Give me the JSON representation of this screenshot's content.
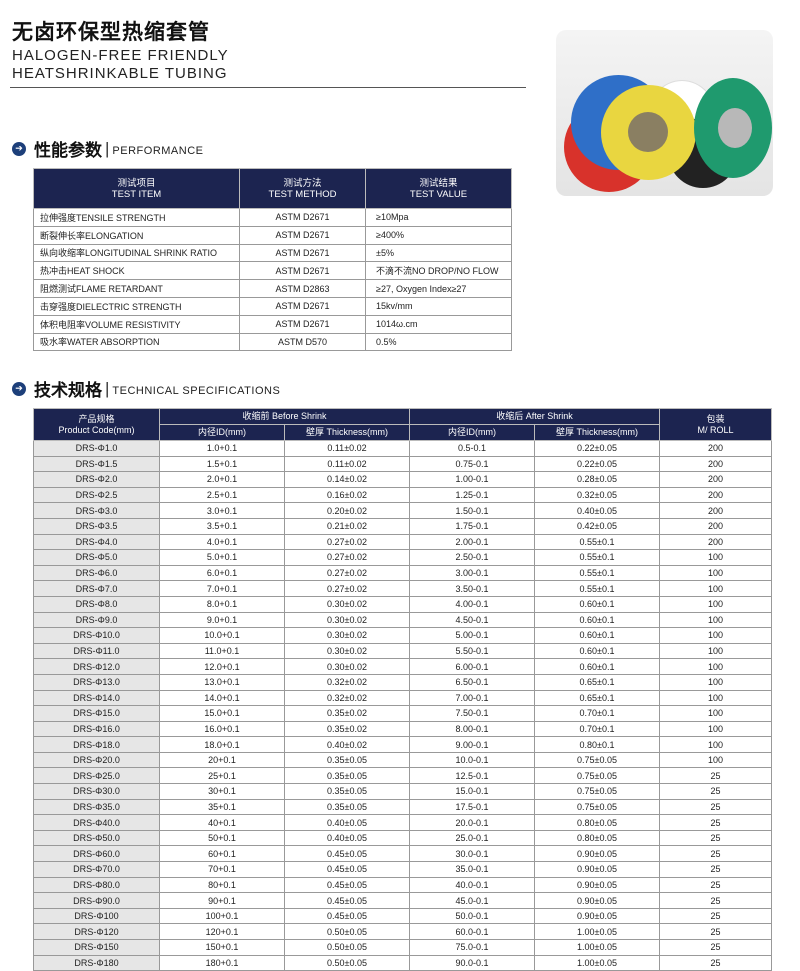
{
  "header": {
    "title_cn": "无卤环保型热缩套管",
    "title_en_1": "HALOGEN-FREE FRIENDLY",
    "title_en_2": "HEATSHRINKABLE TUBING"
  },
  "colors": {
    "header_bg": "#1c2450",
    "code_bg": "#e6e6e6",
    "icon": "#1d3f7a"
  },
  "performance": {
    "heading_cn": "性能参数",
    "heading_en": "PERFORMANCE",
    "columns": [
      {
        "cn": "测试项目",
        "en": "TEST ITEM"
      },
      {
        "cn": "测试方法",
        "en": "TEST METHOD"
      },
      {
        "cn": "测试结果",
        "en": "TEST VALUE"
      }
    ],
    "rows": [
      [
        "拉伸强度TENSILE STRENGTH",
        "ASTM D2671",
        "≥10Mpa"
      ],
      [
        "断裂伸长率ELONGATION",
        "ASTM D2671",
        "≥400%"
      ],
      [
        "纵向收缩率LONGITUDINAL SHRINK RATIO",
        "ASTM D2671",
        "±5%"
      ],
      [
        "热冲击HEAT SHOCK",
        "ASTM D2671",
        "不滴不流NO DROP/NO FLOW"
      ],
      [
        "阻燃测试FLAME RETARDANT",
        "ASTM D2863",
        "≥27, Oxygen Index≥27"
      ],
      [
        "击穿强度DIELECTRIC STRENGTH",
        "ASTM D2671",
        "15kv/mm"
      ],
      [
        "体积电阻率VOLUME RESISTIVITY",
        "ASTM D2671",
        "1014ω.cm"
      ],
      [
        "吸水率WATER ABSORPTION",
        "ASTM D570",
        "0.5%"
      ]
    ]
  },
  "specs": {
    "heading_cn": "技术规格",
    "heading_en": "TECHNICAL SPECIFICATIONS",
    "col_code_cn": "产品规格",
    "col_code_en": "Product Code(mm)",
    "before": "收缩前 Before Shrink",
    "after": "收缩后 After Shrink",
    "id": "内径ID(mm)",
    "thickness": "壁厚 Thickness(mm)",
    "pack_cn": "包装",
    "pack_en": "M/ ROLL",
    "rows": [
      [
        "DRS-Φ1.0",
        "1.0+0.1",
        "0.11±0.02",
        "0.5-0.1",
        "0.22±0.05",
        "200"
      ],
      [
        "DRS-Φ1.5",
        "1.5+0.1",
        "0.11±0.02",
        "0.75-0.1",
        "0.22±0.05",
        "200"
      ],
      [
        "DRS-Φ2.0",
        "2.0+0.1",
        "0.14±0.02",
        "1.00-0.1",
        "0.28±0.05",
        "200"
      ],
      [
        "DRS-Φ2.5",
        "2.5+0.1",
        "0.16±0.02",
        "1.25-0.1",
        "0.32±0.05",
        "200"
      ],
      [
        "DRS-Φ3.0",
        "3.0+0.1",
        "0.20±0.02",
        "1.50-0.1",
        "0.40±0.05",
        "200"
      ],
      [
        "DRS-Φ3.5",
        "3.5+0.1",
        "0.21±0.02",
        "1.75-0.1",
        "0.42±0.05",
        "200"
      ],
      [
        "DRS-Φ4.0",
        "4.0+0.1",
        "0.27±0.02",
        "2.00-0.1",
        "0.55±0.1",
        "200"
      ],
      [
        "DRS-Φ5.0",
        "5.0+0.1",
        "0.27±0.02",
        "2.50-0.1",
        "0.55±0.1",
        "100"
      ],
      [
        "DRS-Φ6.0",
        "6.0+0.1",
        "0.27±0.02",
        "3.00-0.1",
        "0.55±0.1",
        "100"
      ],
      [
        "DRS-Φ7.0",
        "7.0+0.1",
        "0.27±0.02",
        "3.50-0.1",
        "0.55±0.1",
        "100"
      ],
      [
        "DRS-Φ8.0",
        "8.0+0.1",
        "0.30±0.02",
        "4.00-0.1",
        "0.60±0.1",
        "100"
      ],
      [
        "DRS-Φ9.0",
        "9.0+0.1",
        "0.30±0.02",
        "4.50-0.1",
        "0.60±0.1",
        "100"
      ],
      [
        "DRS-Φ10.0",
        "10.0+0.1",
        "0.30±0.02",
        "5.00-0.1",
        "0.60±0.1",
        "100"
      ],
      [
        "DRS-Φ11.0",
        "11.0+0.1",
        "0.30±0.02",
        "5.50-0.1",
        "0.60±0.1",
        "100"
      ],
      [
        "DRS-Φ12.0",
        "12.0+0.1",
        "0.30±0.02",
        "6.00-0.1",
        "0.60±0.1",
        "100"
      ],
      [
        "DRS-Φ13.0",
        "13.0+0.1",
        "0.32±0.02",
        "6.50-0.1",
        "0.65±0.1",
        "100"
      ],
      [
        "DRS-Φ14.0",
        "14.0+0.1",
        "0.32±0.02",
        "7.00-0.1",
        "0.65±0.1",
        "100"
      ],
      [
        "DRS-Φ15.0",
        "15.0+0.1",
        "0.35±0.02",
        "7.50-0.1",
        "0.70±0.1",
        "100"
      ],
      [
        "DRS-Φ16.0",
        "16.0+0.1",
        "0.35±0.02",
        "8.00-0.1",
        "0.70±0.1",
        "100"
      ],
      [
        "DRS-Φ18.0",
        "18.0+0.1",
        "0.40±0.02",
        "9.00-0.1",
        "0.80±0.1",
        "100"
      ],
      [
        "DRS-Φ20.0",
        "20+0.1",
        "0.35±0.05",
        "10.0-0.1",
        "0.75±0.05",
        "100"
      ],
      [
        "DRS-Φ25.0",
        "25+0.1",
        "0.35±0.05",
        "12.5-0.1",
        "0.75±0.05",
        "25"
      ],
      [
        "DRS-Φ30.0",
        "30+0.1",
        "0.35±0.05",
        "15.0-0.1",
        "0.75±0.05",
        "25"
      ],
      [
        "DRS-Φ35.0",
        "35+0.1",
        "0.35±0.05",
        "17.5-0.1",
        "0.75±0.05",
        "25"
      ],
      [
        "DRS-Φ40.0",
        "40+0.1",
        "0.40±0.05",
        "20.0-0.1",
        "0.80±0.05",
        "25"
      ],
      [
        "DRS-Φ50.0",
        "50+0.1",
        "0.40±0.05",
        "25.0-0.1",
        "0.80±0.05",
        "25"
      ],
      [
        "DRS-Φ60.0",
        "60+0.1",
        "0.45±0.05",
        "30.0-0.1",
        "0.90±0.05",
        "25"
      ],
      [
        "DRS-Φ70.0",
        "70+0.1",
        "0.45±0.05",
        "35.0-0.1",
        "0.90±0.05",
        "25"
      ],
      [
        "DRS-Φ80.0",
        "80+0.1",
        "0.45±0.05",
        "40.0-0.1",
        "0.90±0.05",
        "25"
      ],
      [
        "DRS-Φ90.0",
        "90+0.1",
        "0.45±0.05",
        "45.0-0.1",
        "0.90±0.05",
        "25"
      ],
      [
        "DRS-Φ100",
        "100+0.1",
        "0.45±0.05",
        "50.0-0.1",
        "0.90±0.05",
        "25"
      ],
      [
        "DRS-Φ120",
        "120+0.1",
        "0.50±0.05",
        "60.0-0.1",
        "1.00±0.05",
        "25"
      ],
      [
        "DRS-Φ150",
        "150+0.1",
        "0.50±0.05",
        "75.0-0.1",
        "1.00±0.05",
        "25"
      ],
      [
        "DRS-Φ180",
        "180+0.1",
        "0.50±0.05",
        "90.0-0.1",
        "1.00±0.05",
        "25"
      ]
    ]
  }
}
